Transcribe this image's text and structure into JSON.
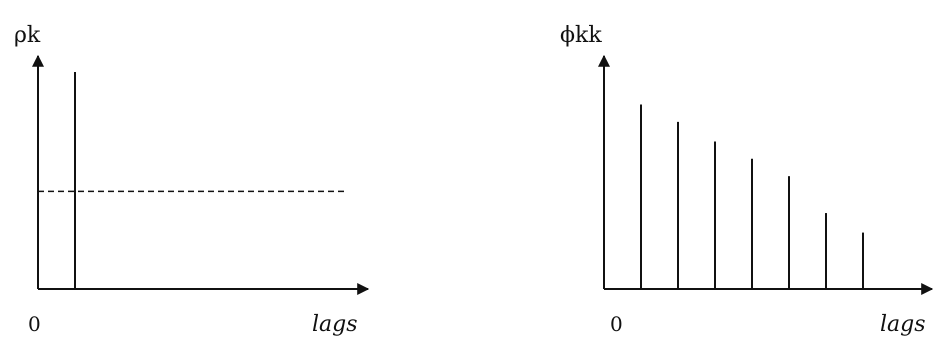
{
  "chart_data": [
    {
      "type": "bar",
      "ylabel": "ρk",
      "xlabel": "lags",
      "origin_label": "0",
      "x": [
        1
      ],
      "values": [
        1.0
      ],
      "reference_line": {
        "y": 0.45,
        "style": "dashed"
      },
      "ylim": [
        0,
        1.0
      ],
      "xlim": [
        0,
        8.5
      ],
      "axis_arrows": true
    },
    {
      "type": "bar",
      "ylabel": "ϕkk",
      "xlabel": "lags",
      "origin_label": "0",
      "x": [
        1,
        2,
        3,
        4,
        5,
        6,
        7
      ],
      "values": [
        0.85,
        0.77,
        0.68,
        0.6,
        0.52,
        0.35,
        0.26
      ],
      "ylim": [
        0,
        1.0
      ],
      "xlim": [
        0,
        8.5
      ],
      "axis_arrows": true
    }
  ]
}
